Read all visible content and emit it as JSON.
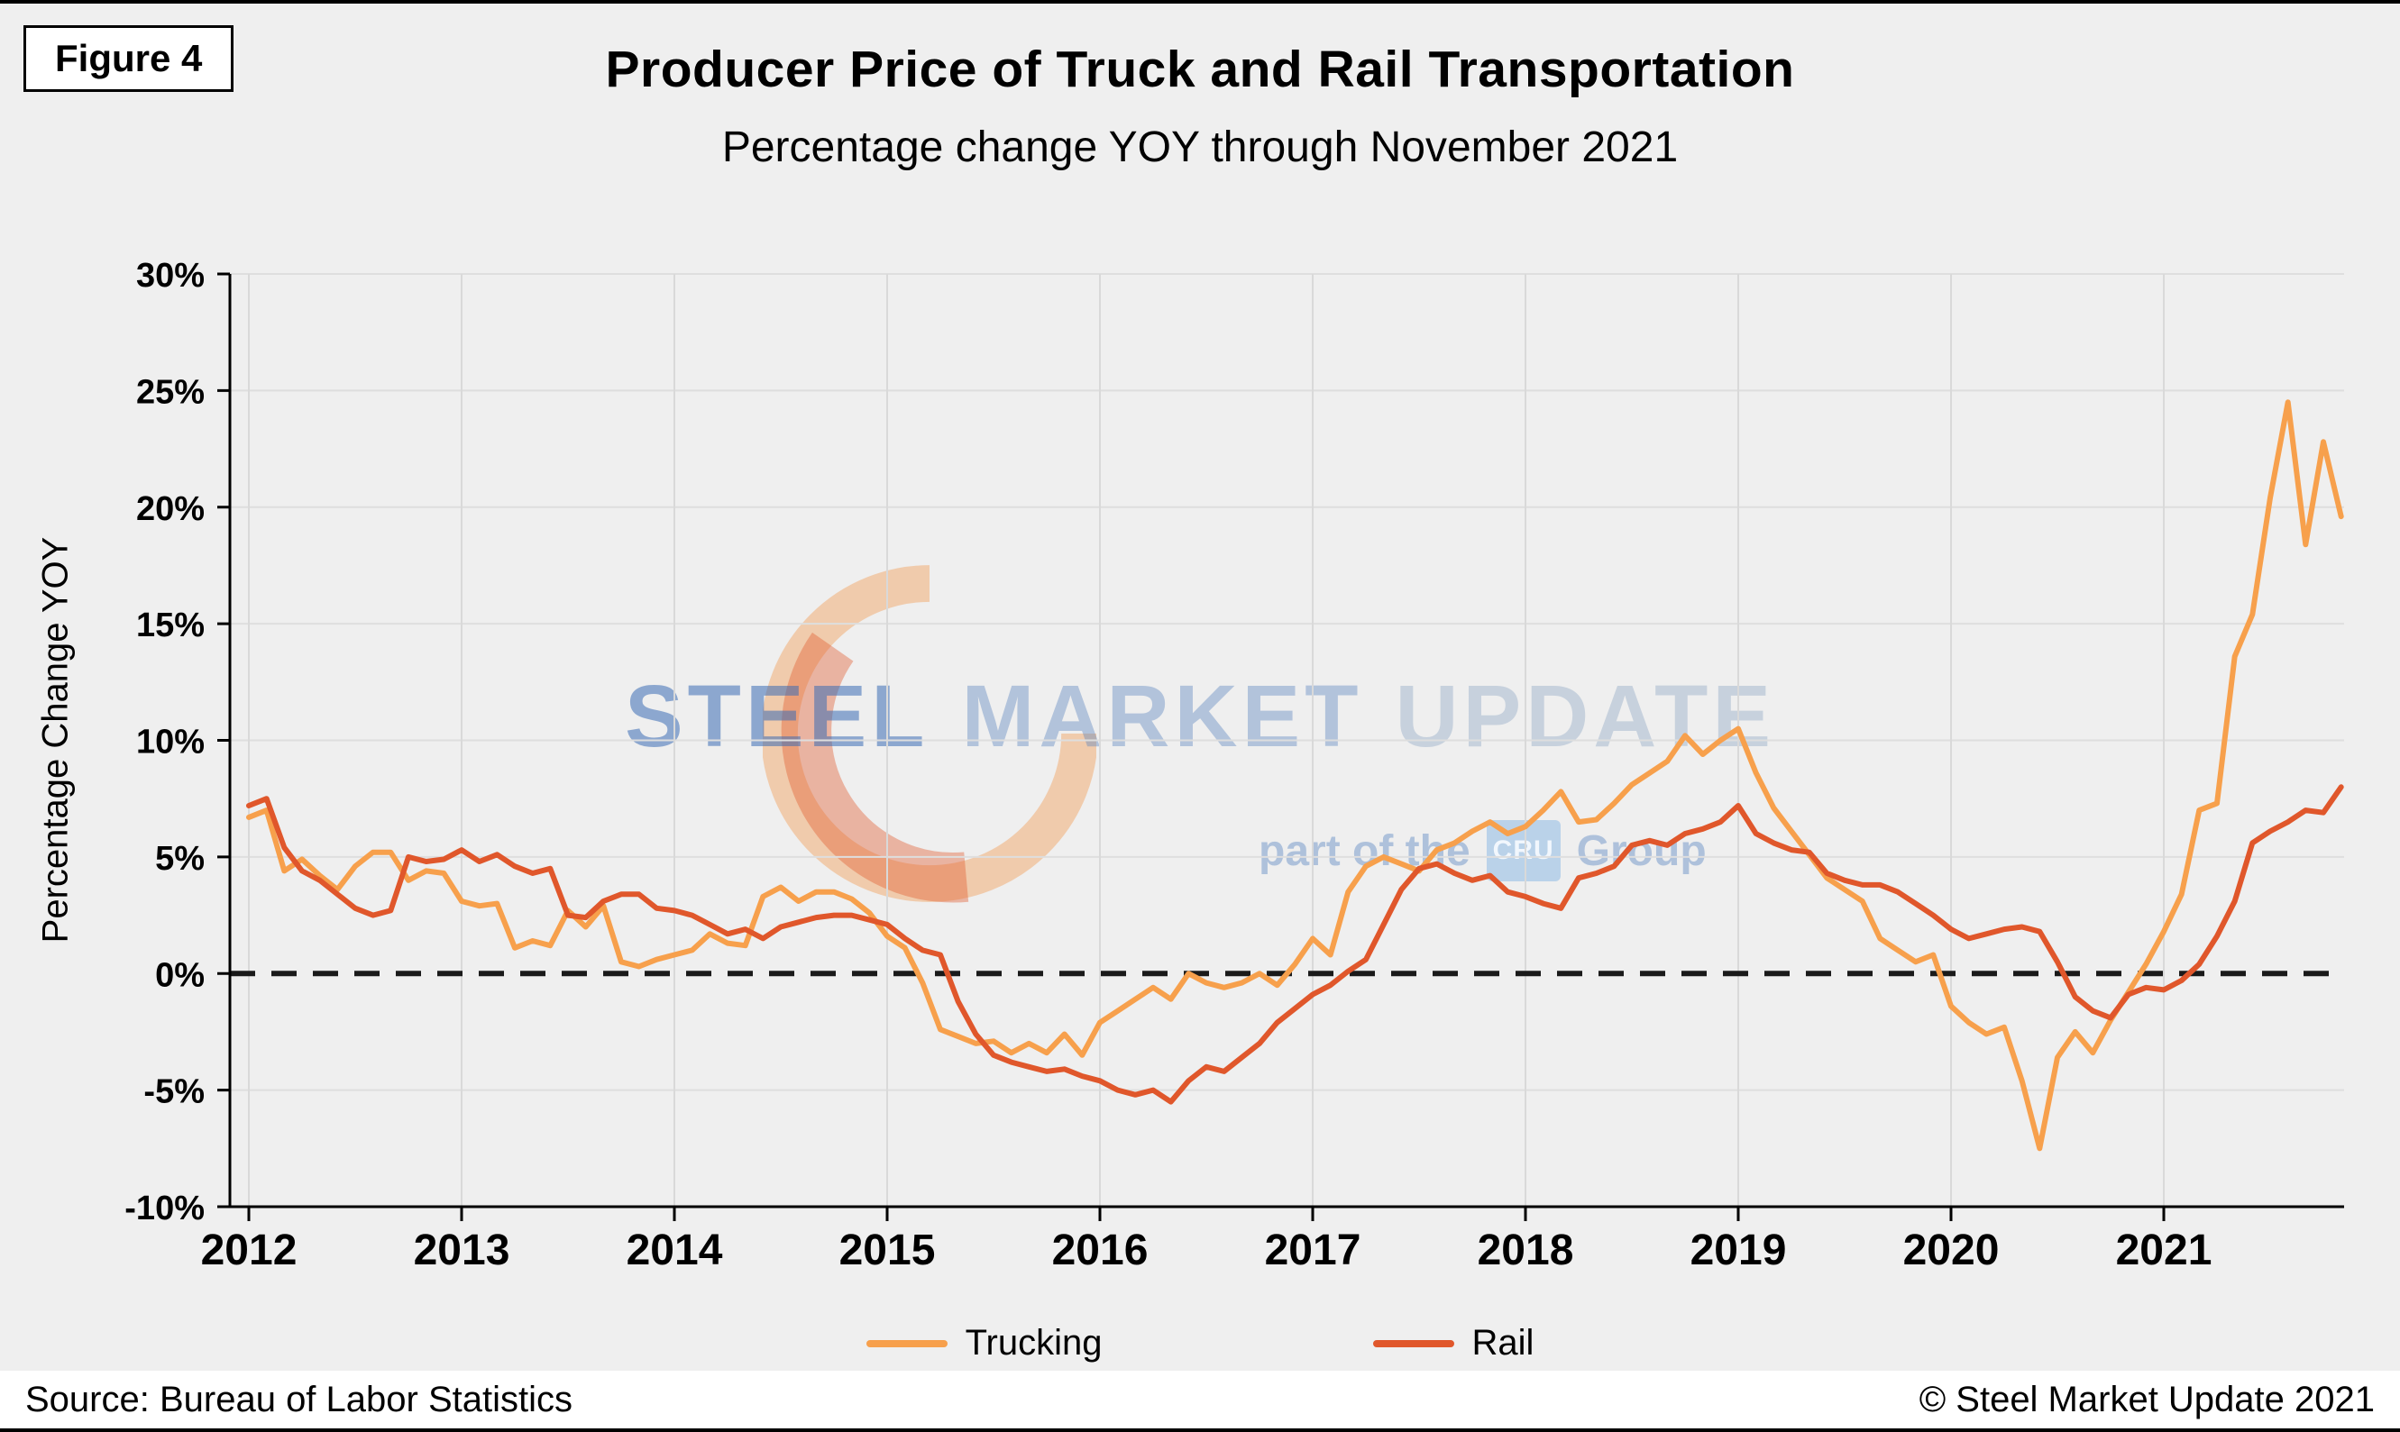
{
  "figure_label": "Figure 4",
  "title": "Producer Price of Truck and Rail Transportation",
  "subtitle": "Percentage change YOY through November 2021",
  "y_axis_title": "Percentage Change YOY",
  "legend": [
    {
      "label": "Trucking",
      "color": "#F7A04C"
    },
    {
      "label": "Rail",
      "color": "#E0572B"
    }
  ],
  "footer": {
    "source": "Source: Bureau of Labor Statistics",
    "copyright": "© Steel Market Update 2021"
  },
  "watermark": {
    "steel": "STEEL",
    "market": "MARKET",
    "update": "UPDATE",
    "tagline_prefix": "part of the",
    "cru": "CRU",
    "tagline_suffix": "Group"
  },
  "chart_data": {
    "type": "line",
    "title": "Producer Price of Truck and Rail Transportation",
    "subtitle": "Percentage change YOY through November 2021",
    "ylabel": "Percentage Change YOY",
    "ylim": [
      -10,
      30
    ],
    "ytick_step": 5,
    "grid": true,
    "zero_line": {
      "style": "dashed",
      "color": "#1a1a1a"
    },
    "x_frequency": "monthly",
    "x_range": [
      "2012-01",
      "2021-11"
    ],
    "x_tick_labels": [
      "2012",
      "2013",
      "2014",
      "2015",
      "2016",
      "2017",
      "2018",
      "2019",
      "2020",
      "2021"
    ],
    "y_ticks": [
      {
        "value": 30,
        "label": "30%"
      },
      {
        "value": 25,
        "label": "25%"
      },
      {
        "value": 20,
        "label": "20%"
      },
      {
        "value": 15,
        "label": "15%"
      },
      {
        "value": 10,
        "label": "10%"
      },
      {
        "value": 5,
        "label": "5%"
      },
      {
        "value": 0,
        "label": "0%"
      },
      {
        "value": -5,
        "label": "-5%"
      },
      {
        "value": -10,
        "label": "-10%"
      }
    ],
    "series": [
      {
        "name": "Trucking",
        "color": "#F7A04C",
        "values": [
          6.7,
          7.0,
          4.4,
          4.9,
          4.2,
          3.6,
          4.6,
          5.2,
          5.2,
          4.0,
          4.4,
          4.3,
          3.1,
          2.9,
          3.0,
          1.1,
          1.4,
          1.2,
          2.7,
          2.0,
          2.9,
          0.5,
          0.3,
          0.6,
          0.8,
          1.0,
          1.7,
          1.3,
          1.2,
          3.3,
          3.7,
          3.1,
          3.5,
          3.5,
          3.2,
          2.6,
          1.6,
          1.1,
          -0.4,
          -2.4,
          -2.7,
          -3.0,
          -2.9,
          -3.4,
          -3.0,
          -3.4,
          -2.6,
          -3.5,
          -2.1,
          -1.6,
          -1.1,
          -0.6,
          -1.1,
          0.0,
          -0.4,
          -0.6,
          -0.4,
          0.0,
          -0.5,
          0.4,
          1.5,
          0.8,
          3.5,
          4.6,
          5.0,
          4.7,
          4.4,
          5.3,
          5.6,
          6.1,
          6.5,
          6.0,
          6.3,
          7.0,
          7.8,
          6.5,
          6.6,
          7.3,
          8.1,
          8.6,
          9.1,
          10.2,
          9.4,
          10.0,
          10.5,
          8.6,
          7.1,
          6.1,
          5.1,
          4.1,
          3.6,
          3.1,
          1.5,
          1.0,
          0.5,
          0.8,
          -1.4,
          -2.1,
          -2.6,
          -2.3,
          -4.6,
          -7.5,
          -3.6,
          -2.5,
          -3.4,
          -2.0,
          -0.8,
          0.4,
          1.8,
          3.4,
          7.0,
          7.3,
          13.6,
          15.4,
          20.4,
          24.5,
          18.4,
          22.8,
          19.6
        ]
      },
      {
        "name": "Rail",
        "color": "#E0572B",
        "values": [
          7.2,
          7.5,
          5.4,
          4.4,
          4.0,
          3.4,
          2.8,
          2.5,
          2.7,
          5.0,
          4.8,
          4.9,
          5.3,
          4.8,
          5.1,
          4.6,
          4.3,
          4.5,
          2.5,
          2.4,
          3.1,
          3.4,
          3.4,
          2.8,
          2.7,
          2.5,
          2.1,
          1.7,
          1.9,
          1.5,
          2.0,
          2.2,
          2.4,
          2.5,
          2.5,
          2.3,
          2.1,
          1.5,
          1.0,
          0.8,
          -1.2,
          -2.6,
          -3.5,
          -3.8,
          -4.0,
          -4.2,
          -4.1,
          -4.4,
          -4.6,
          -5.0,
          -5.2,
          -5.0,
          -5.5,
          -4.6,
          -4.0,
          -4.2,
          -3.6,
          -3.0,
          -2.1,
          -1.5,
          -0.9,
          -0.5,
          0.1,
          0.6,
          2.1,
          3.6,
          4.5,
          4.7,
          4.3,
          4.0,
          4.2,
          3.5,
          3.3,
          3.0,
          2.8,
          4.1,
          4.3,
          4.6,
          5.5,
          5.7,
          5.5,
          6.0,
          6.2,
          6.5,
          7.2,
          6.0,
          5.6,
          5.3,
          5.2,
          4.3,
          4.0,
          3.8,
          3.8,
          3.5,
          3.0,
          2.5,
          1.9,
          1.5,
          1.7,
          1.9,
          2.0,
          1.8,
          0.5,
          -1.0,
          -1.6,
          -1.9,
          -0.9,
          -0.6,
          -0.7,
          -0.3,
          0.4,
          1.6,
          3.1,
          5.6,
          6.1,
          6.5,
          7.0,
          6.9,
          8.0
        ]
      }
    ]
  }
}
